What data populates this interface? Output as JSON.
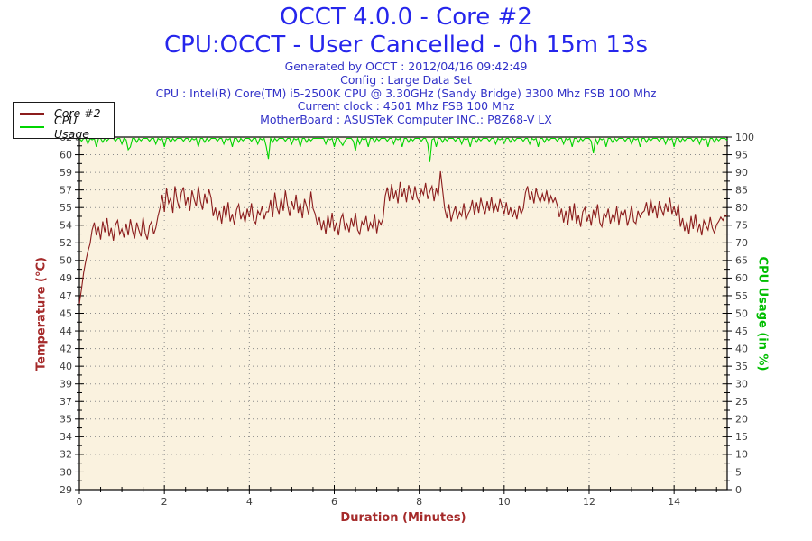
{
  "header": {
    "title_line1": "OCCT 4.0.0 - Core #2",
    "title_line2": "CPU:OCCT - User Cancelled - 0h 15m 13s",
    "meta_lines": [
      "Generated by OCCT : 2012/04/16 09:42:49",
      "Config : Large Data Set",
      "CPU : Intel(R) Core(TM) i5-2500K CPU @ 3.30GHz (Sandy Bridge) 3300 Mhz FSB 100 Mhz",
      "Current clock : 4501 Mhz FSB 100 Mhz",
      "MotherBoard : ASUSTeK Computer INC.: P8Z68-V LX"
    ]
  },
  "legend": {
    "items": [
      {
        "label": "Core #2",
        "color": "#8B1C1C"
      },
      {
        "label": "CPU Usage",
        "color": "#00D500"
      }
    ]
  },
  "axes": {
    "x": {
      "label": "Duration (Minutes)",
      "min": 0,
      "max": 15.25,
      "major_tick_labels": [
        0,
        2,
        4,
        6,
        8,
        10,
        12,
        14
      ],
      "minor_tick_step": 0.5
    },
    "y_left": {
      "label": "Temperature (°C)",
      "min": 29,
      "max": 62,
      "tick_labels": [
        62,
        60,
        59,
        57,
        55,
        54,
        52,
        50,
        49,
        47,
        45,
        44,
        42,
        40,
        39,
        37,
        35,
        34,
        32,
        30,
        29
      ]
    },
    "y_right": {
      "label": "CPU Usage (in %)",
      "min": 0,
      "max": 100,
      "tick_labels": [
        100,
        95,
        90,
        85,
        80,
        75,
        70,
        65,
        60,
        55,
        50,
        45,
        40,
        35,
        30,
        25,
        20,
        15,
        10,
        5,
        0
      ]
    }
  },
  "colors": {
    "page_bg": "#FFFFFF",
    "plot_bg": "#FAF2DF",
    "grid": "#8A8A8A",
    "axis": "#000000",
    "tick_label": "#3F3F3F",
    "title_blue": "#2626EC",
    "meta_blue": "#3232C8",
    "axis_title_red": "#A52A2A",
    "axis_title_green": "#00BE00",
    "temp_line": "#8B1C1C",
    "cpu_line": "#00D500"
  },
  "chart_data": {
    "type": "line",
    "title": "OCCT 4.0.0 - Core #2",
    "subtitle": "CPU:OCCT - User Cancelled - 0h 15m 13s",
    "xlabel": "Duration (Minutes)",
    "grid": "dotted",
    "legend_position": "top-left",
    "x_start": 0,
    "x_step_minutes": 0.05,
    "x_range": [
      0,
      15.25
    ],
    "series": [
      {
        "name": "Core #2",
        "axis": "left",
        "unit": "°C",
        "y_range": [
          29,
          62
        ],
        "color": "#8B1C1C",
        "values": [
          46.4,
          47.8,
          49.3,
          50.4,
          51.3,
          52.0,
          53.3,
          54.0,
          52.8,
          53.6,
          52.4,
          54.1,
          53.1,
          54.4,
          52.7,
          53.5,
          52.3,
          53.8,
          54.2,
          52.9,
          53.4,
          52.6,
          53.9,
          52.8,
          54.3,
          53.2,
          52.5,
          54.0,
          53.3,
          52.7,
          54.5,
          53.0,
          52.4,
          53.7,
          54.1,
          52.9,
          53.5,
          54.6,
          55.4,
          56.6,
          55.0,
          57.2,
          55.8,
          56.3,
          54.9,
          57.4,
          56.1,
          55.3,
          56.8,
          57.3,
          55.6,
          56.4,
          55.1,
          57.0,
          56.2,
          55.5,
          57.4,
          56.0,
          55.2,
          56.7,
          55.8,
          57.1,
          56.3,
          54.6,
          55.4,
          54.2,
          55.1,
          53.9,
          55.6,
          54.4,
          55.9,
          54.1,
          54.8,
          53.8,
          55.2,
          55.7,
          54.3,
          54.9,
          54.0,
          55.3,
          54.5,
          55.8,
          54.2,
          53.9,
          55.1,
          54.7,
          55.5,
          54.3,
          55.0,
          55.0,
          56.1,
          54.5,
          56.8,
          55.4,
          54.8,
          56.3,
          55.1,
          57.0,
          55.6,
          54.6,
          56.0,
          55.2,
          56.6,
          54.9,
          55.8,
          54.4,
          56.2,
          55.5,
          54.7,
          56.9,
          55.3,
          54.8,
          53.8,
          54.5,
          53.3,
          54.2,
          52.9,
          54.7,
          53.5,
          54.9,
          53.2,
          54.0,
          52.8,
          54.3,
          54.8,
          53.4,
          53.9,
          53.1,
          54.4,
          53.6,
          54.9,
          53.3,
          52.9,
          54.1,
          53.7,
          54.6,
          53.2,
          54.0,
          53.5,
          54.8,
          53.0,
          54.2,
          53.8,
          54.4,
          56.5,
          57.3,
          56.0,
          57.6,
          56.2,
          57.0,
          55.8,
          57.8,
          56.4,
          57.2,
          55.9,
          57.5,
          56.7,
          56.1,
          57.4,
          56.3,
          55.9,
          57.1,
          56.6,
          57.7,
          56.2,
          56.9,
          57.4,
          56.0,
          57.2,
          56.5,
          58.8,
          57.0,
          55.3,
          54.4,
          55.7,
          54.1,
          54.9,
          55.5,
          54.3,
          55.0,
          54.6,
          55.8,
          54.2,
          54.8,
          55.2,
          56.1,
          54.7,
          55.9,
          54.9,
          56.3,
          55.4,
          54.8,
          56.0,
          55.1,
          56.4,
          54.9,
          55.7,
          55.0,
          56.2,
          55.5,
          54.8,
          55.9,
          54.7,
          55.4,
          54.5,
          55.2,
          54.3,
          55.6,
          54.8,
          55.3,
          56.8,
          57.4,
          56.1,
          56.9,
          55.8,
          57.2,
          56.4,
          55.9,
          56.7,
          56.0,
          57.0,
          55.7,
          56.5,
          55.9,
          56.3,
          55.6,
          54.5,
          55.3,
          54.0,
          55.1,
          53.8,
          55.5,
          54.2,
          55.8,
          53.9,
          54.7,
          53.6,
          55.0,
          55.4,
          54.1,
          54.8,
          53.7,
          55.2,
          54.4,
          55.7,
          54.0,
          53.6,
          54.9,
          54.5,
          55.3,
          53.9,
          54.7,
          54.2,
          55.5,
          53.8,
          55.0,
          54.6,
          55.2,
          53.7,
          54.4,
          55.6,
          54.1,
          53.9,
          55.1,
          54.5,
          54.9,
          55.1,
          55.9,
          54.6,
          56.2,
          54.9,
          55.6,
          54.4,
          56.0,
          55.2,
          54.7,
          55.8,
          55.0,
          56.3,
          54.8,
          55.5,
          54.6,
          55.7,
          53.6,
          54.4,
          53.2,
          54.1,
          52.9,
          54.6,
          53.4,
          54.8,
          53.1,
          53.9,
          52.8,
          54.2,
          53.7,
          53.3,
          54.5,
          53.5,
          53.0,
          53.8,
          54.1,
          54.5,
          54.2,
          54.7,
          54.6
        ]
      },
      {
        "name": "CPU Usage",
        "axis": "right",
        "unit": "%",
        "y_range": [
          0,
          100
        ],
        "color": "#00D500",
        "values": [
          100,
          99.2,
          100,
          100,
          98.4,
          100,
          99.6,
          100,
          97.6,
          100,
          100,
          98.9,
          100,
          99.3,
          100,
          100,
          100,
          99.2,
          100,
          100,
          98.4,
          100,
          99.6,
          96.8,
          97.6,
          100,
          100,
          98.9,
          100,
          99.3,
          100,
          100,
          100,
          99.2,
          100,
          100,
          98.4,
          100,
          99.6,
          100,
          97.6,
          100,
          100,
          98.9,
          100,
          99.3,
          100,
          100,
          100,
          99.2,
          100,
          100,
          99.0,
          100,
          99.6,
          100,
          97.6,
          100,
          100,
          98.9,
          100,
          99.3,
          100,
          100,
          100,
          99.2,
          100,
          100,
          98.4,
          100,
          99.6,
          100,
          97.6,
          100,
          100,
          98.9,
          100,
          99.3,
          100,
          100,
          100,
          99.2,
          100,
          100,
          98.4,
          100,
          99.6,
          100,
          97.6,
          94.2,
          100,
          98.9,
          100,
          99.3,
          100,
          100,
          100,
          99.2,
          100,
          100,
          98.4,
          100,
          99.6,
          100,
          97.6,
          100,
          100,
          98.9,
          100,
          99.3,
          100,
          100,
          100,
          100,
          100,
          100,
          98.4,
          100,
          99.6,
          100,
          97.6,
          100,
          100,
          98.9,
          98.0,
          99.3,
          100,
          100,
          100,
          99.2,
          96.5,
          100,
          98.4,
          100,
          99.6,
          100,
          97.6,
          100,
          100,
          98.9,
          100,
          99.3,
          100,
          100,
          100,
          99.2,
          100,
          100,
          98.4,
          100,
          99.6,
          100,
          97.6,
          100,
          100,
          98.9,
          100,
          99.3,
          100,
          100,
          100,
          99.2,
          100,
          100,
          98.4,
          93.3,
          99.6,
          100,
          97.6,
          100,
          100,
          98.9,
          100,
          99.3,
          100,
          100,
          100,
          99.2,
          100,
          100,
          98.4,
          100,
          99.6,
          100,
          97.6,
          100,
          100,
          98.9,
          100,
          99.3,
          100,
          100,
          100,
          99.2,
          100,
          100,
          98.4,
          100,
          99.6,
          100,
          98.6,
          100,
          100,
          98.9,
          100,
          99.3,
          100,
          100,
          100,
          99.2,
          100,
          100,
          98.4,
          100,
          99.6,
          100,
          97.6,
          100,
          100,
          98.9,
          100,
          99.3,
          100,
          100,
          100,
          99.2,
          100,
          100,
          98.4,
          100,
          99.6,
          100,
          97.6,
          100,
          100,
          98.9,
          100,
          99.3,
          100,
          100,
          100,
          99.2,
          95.8,
          100,
          98.4,
          100,
          99.6,
          100,
          97.6,
          100,
          100,
          98.9,
          100,
          99.3,
          100,
          100,
          100,
          99.2,
          100,
          100,
          98.4,
          100,
          99.6,
          100,
          97.6,
          100,
          100,
          98.9,
          100,
          99.3,
          100,
          100,
          100,
          99.2,
          100,
          100,
          98.4,
          100,
          99.6,
          100,
          97.6,
          100,
          100,
          98.9,
          100,
          99.3,
          100,
          100,
          100,
          99.2,
          100,
          100,
          98.4,
          100,
          99.6,
          100,
          97.6,
          100,
          100,
          98.9,
          100,
          99.3,
          100,
          100,
          100,
          99.4
        ]
      }
    ]
  }
}
